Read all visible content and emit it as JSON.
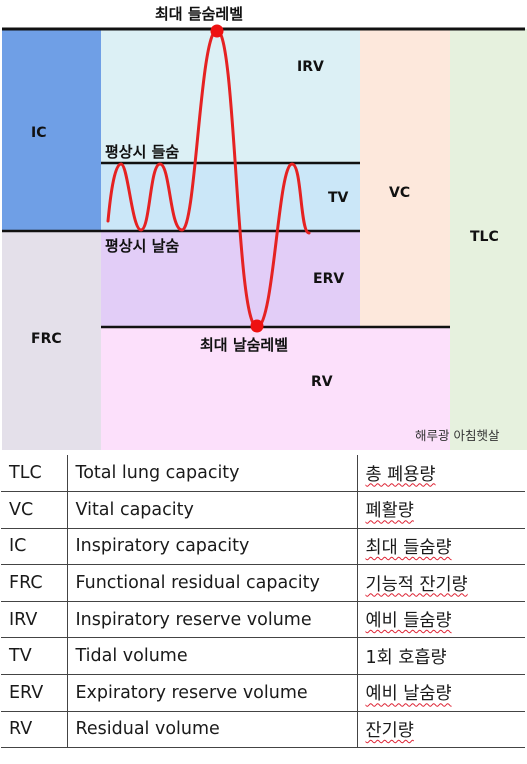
{
  "diagram": {
    "labels": {
      "max_inhale": "최대 들숨레벨",
      "max_exhale": "최대 날숨레벨",
      "rest_inhale": "평상시 들숨",
      "rest_exhale": "평상시 날숨",
      "irv": "IRV",
      "tv": "TV",
      "erv": "ERV",
      "rv": "RV",
      "vc": "VC",
      "tlc": "TLC",
      "ic": "IC",
      "frc": "FRC",
      "watermark": "해루광 아침햇살"
    },
    "colors": {
      "ic": "#6f9fe6",
      "frc": "#e4e0ea",
      "irv": "#dcf0f5",
      "tv": "#cbe7f8",
      "erv": "#e2cdf7",
      "rv": "#fce0fb",
      "vc": "#fde8dc",
      "tlc": "#e6f1de",
      "curve": "#e52222",
      "marker": "#ee1111"
    }
  },
  "glossary": {
    "rows": [
      {
        "abbr": "TLC",
        "english": "Total lung capacity",
        "korean": "총 폐용량"
      },
      {
        "abbr": "VC",
        "english": "Vital capacity",
        "korean": "폐활량"
      },
      {
        "abbr": "IC",
        "english": "Inspiratory capacity",
        "korean": "최대 들숨량"
      },
      {
        "abbr": "FRC",
        "english": "Functional residual capacity",
        "korean": "기능적 잔기량"
      },
      {
        "abbr": "IRV",
        "english": "Inspiratory reserve volume",
        "korean": "예비 들숨량"
      },
      {
        "abbr": "TV",
        "english": "Tidal volume",
        "korean": "1회 호흡량"
      },
      {
        "abbr": "ERV",
        "english": "Expiratory reserve volume",
        "korean": "예비 날숨량"
      },
      {
        "abbr": "RV",
        "english": "Residual volume",
        "korean": "잔기량"
      }
    ]
  }
}
